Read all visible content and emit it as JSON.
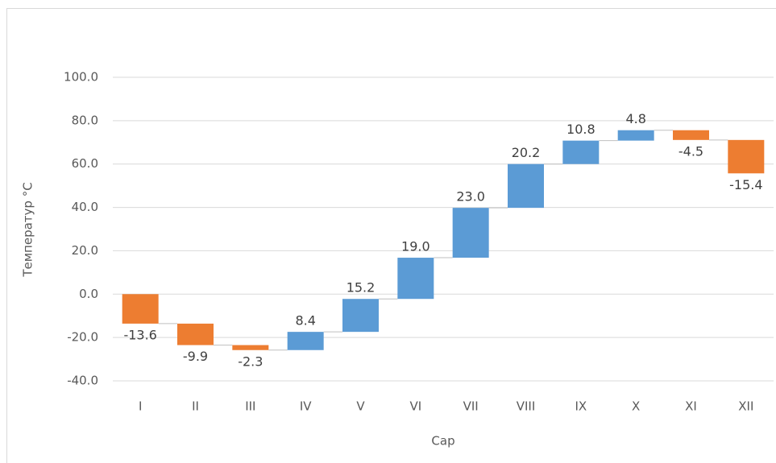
{
  "chart_data": {
    "type": "waterfall",
    "y_label": "Температур °C",
    "x_label": "Сар",
    "categories": [
      "I",
      "II",
      "III",
      "IV",
      "V",
      "VI",
      "VII",
      "VIII",
      "IX",
      "X",
      "XI",
      "XII"
    ],
    "values": [
      -13.6,
      -9.9,
      -2.3,
      8.4,
      15.2,
      19.0,
      23.0,
      20.2,
      10.8,
      4.8,
      -4.5,
      -15.4
    ],
    "value_labels": [
      "-13.6",
      "-9.9",
      "-2.3",
      "8.4",
      "15.2",
      "19.0",
      "23.0",
      "20.2",
      "10.8",
      "4.8",
      "-4.5",
      "-15.4"
    ],
    "increase_color": "#5b9bd5",
    "decrease_color": "#ed7d31",
    "ylim": [
      -40,
      100
    ],
    "yticks": [
      {
        "value": -40,
        "label": "-40.0"
      },
      {
        "value": -20,
        "label": "-20.0"
      },
      {
        "value": 0,
        "label": "0.0"
      },
      {
        "value": 20,
        "label": "20.0"
      },
      {
        "value": 40,
        "label": "40.0"
      },
      {
        "value": 60,
        "label": "60.0"
      },
      {
        "value": 80,
        "label": "80.0"
      },
      {
        "value": 100,
        "label": "100.0"
      }
    ],
    "grid": true
  }
}
